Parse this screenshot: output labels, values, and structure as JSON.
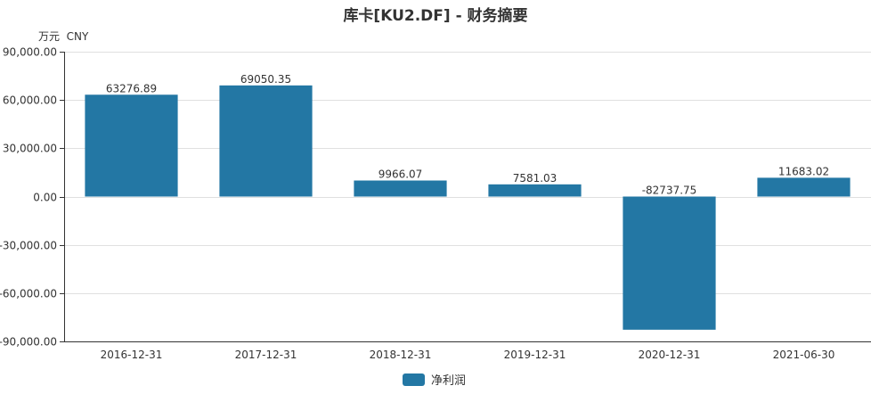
{
  "chart_data": {
    "type": "bar",
    "title": "库卡[KU2.DF] - 财务摘要",
    "unit_label": "万元  CNY",
    "categories": [
      "2016-12-31",
      "2017-12-31",
      "2018-12-31",
      "2019-12-31",
      "2020-12-31",
      "2021-06-30"
    ],
    "series": [
      {
        "name": "净利润",
        "values": [
          63276.89,
          69050.35,
          9966.07,
          7581.03,
          -82737.75,
          11683.02
        ],
        "color": "#2377a4"
      }
    ],
    "ylim": [
      -90000,
      90000
    ],
    "yticks": [
      90000,
      60000,
      30000,
      0,
      -30000,
      -60000,
      -90000
    ],
    "ytick_labels": [
      "90,000.00",
      "60,000.00",
      "30,000.00",
      "0.00",
      "-30,000.00",
      "-60,000.00",
      "-90,000.00"
    ],
    "data_labels": [
      "63276.89",
      "69050.35",
      "9966.07",
      "7581.03",
      "-82737.75",
      "11683.02"
    ],
    "grid": true,
    "legend_position": "bottom-center"
  }
}
